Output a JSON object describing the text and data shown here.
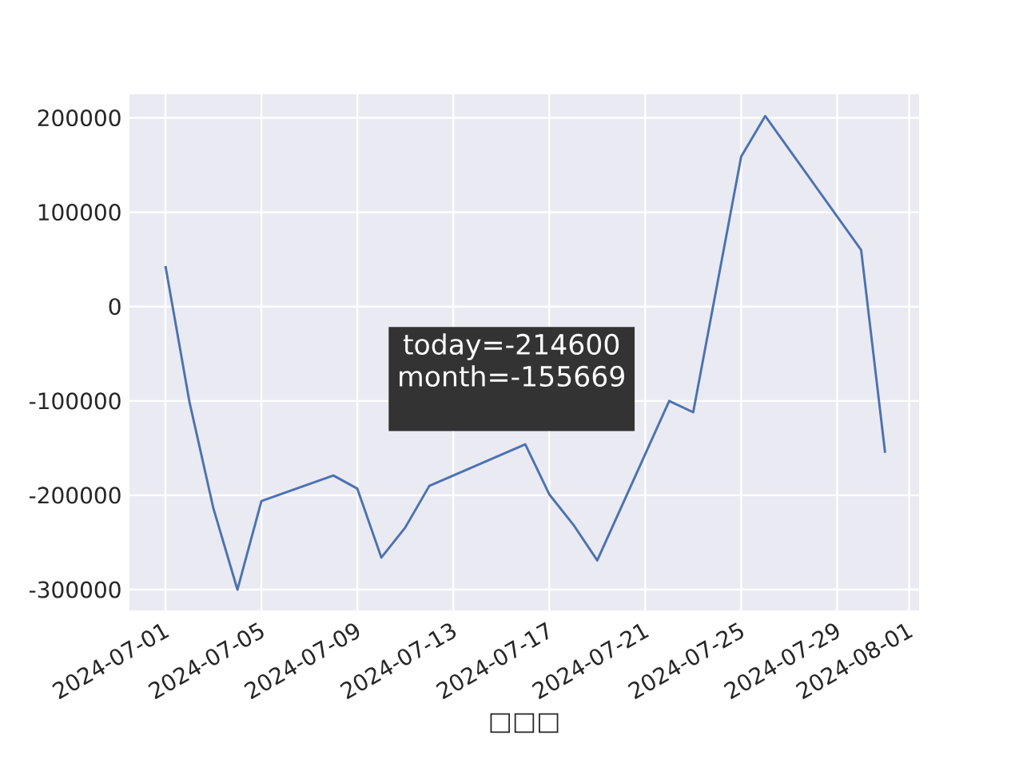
{
  "chart_data": {
    "type": "line",
    "xlabel": "□□□",
    "grid": true,
    "x": [
      "2024-07-01",
      "2024-07-02",
      "2024-07-03",
      "2024-07-04",
      "2024-07-05",
      "2024-07-08",
      "2024-07-09",
      "2024-07-10",
      "2024-07-11",
      "2024-07-12",
      "2024-07-16",
      "2024-07-17",
      "2024-07-18",
      "2024-07-19",
      "2024-07-22",
      "2024-07-23",
      "2024-07-25",
      "2024-07-26",
      "2024-07-30",
      "2024-07-31"
    ],
    "series": [
      {
        "color": "#4c72b0",
        "values": [
          43000,
          -101000,
          -214000,
          -300000,
          -206000,
          -179000,
          -193000,
          -266000,
          -234000,
          -190000,
          -146000,
          -199000,
          -231000,
          -269000,
          -100000,
          -112000,
          159000,
          202000,
          60000,
          -155000
        ]
      }
    ],
    "xlim": [
      "2024-06-29T12:00",
      "2024-08-01T10:00"
    ],
    "xticks": [
      "2024-07-01",
      "2024-07-05",
      "2024-07-09",
      "2024-07-13",
      "2024-07-17",
      "2024-07-21",
      "2024-07-25",
      "2024-07-29",
      "2024-08-01"
    ],
    "ylim": [
      -322000,
      225000
    ],
    "yticks": [
      -300000,
      -200000,
      -100000,
      0,
      100000,
      200000
    ],
    "annotations": [
      "today=-214600",
      "month=-155669"
    ]
  }
}
